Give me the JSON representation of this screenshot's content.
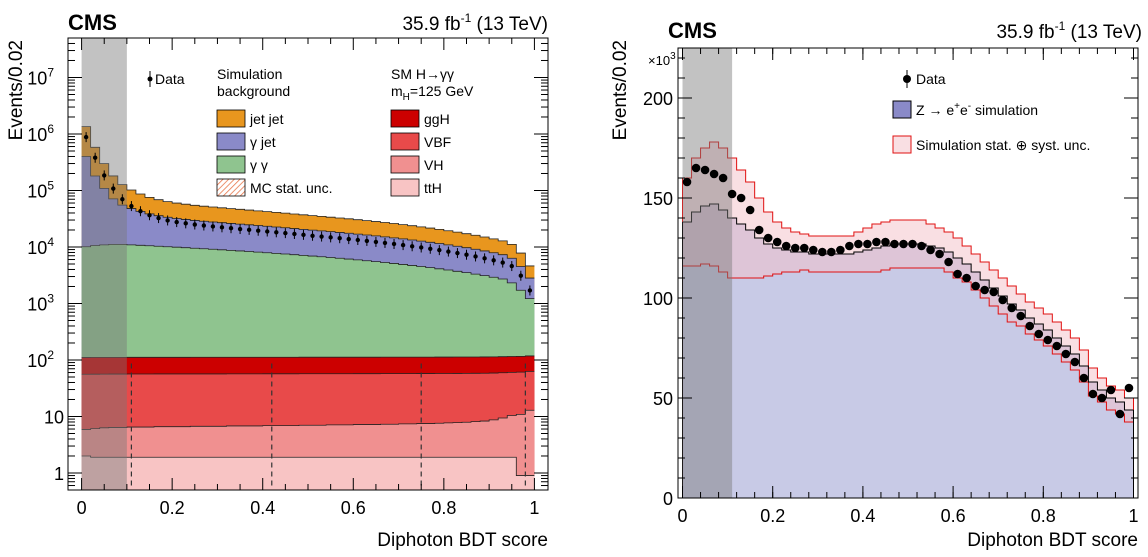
{
  "chart_data": [
    {
      "type": "area",
      "experiment": "CMS",
      "lumi": "35.9 fb",
      "lumi_sup": "-1",
      "energy": " (13 TeV)",
      "xlabel": "Diphoton BDT score",
      "ylabel": "Events/0.02",
      "log_y": true,
      "xlim": [
        -0.03,
        1.03
      ],
      "ylim": [
        0.5,
        50000000
      ],
      "x_ticks": [
        0,
        0.2,
        0.4,
        0.6,
        0.8,
        1
      ],
      "x_tick_labels": [
        "0",
        "0.2",
        "0.4",
        "0.6",
        "0.8",
        "1"
      ],
      "y_ticks": [
        1,
        10,
        100,
        1000,
        10000,
        100000,
        1000000,
        10000000
      ],
      "y_tick_labels": [
        {
          "base": "1",
          "exp": ""
        },
        {
          "base": "10",
          "exp": ""
        },
        {
          "base": "10",
          "exp": "2"
        },
        {
          "base": "10",
          "exp": "3"
        },
        {
          "base": "10",
          "exp": "4"
        },
        {
          "base": "10",
          "exp": "5"
        },
        {
          "base": "10",
          "exp": "6"
        },
        {
          "base": "10",
          "exp": "7"
        }
      ],
      "shaded_region": [
        0,
        0.1
      ],
      "dashed_lines_x": [
        0.11,
        0.42,
        0.75,
        0.98
      ],
      "legend": {
        "data": "Data",
        "bkg_header": [
          "Simulation",
          "background"
        ],
        "sig_header": "SM H→γγ",
        "sig_header2_main": "m",
        "sig_header2_sub": "H",
        "sig_header2_rest": "=125 GeV",
        "bkg_items": [
          {
            "label": "jet jet",
            "color": "#e8961e"
          },
          {
            "label": "γ jet",
            "color": "#8a8ac8"
          },
          {
            "label": "γ γ",
            "color": "#8fc48f"
          },
          {
            "label": "MC stat. unc.",
            "color": "#e8764a"
          }
        ],
        "sig_items": [
          {
            "label": "ggH",
            "color": "#cc0000"
          },
          {
            "label": "VBF",
            "color": "#e84a4a"
          },
          {
            "label": "VH",
            "color": "#f09090"
          },
          {
            "label": "ttH",
            "color": "#f8c4c4"
          }
        ]
      },
      "bin_width": 0.02,
      "series": [
        {
          "name": "ttH",
          "color": "#f8c4c4",
          "values": [
            2.0,
            1.9,
            1.9,
            1.9,
            1.9,
            1.9,
            1.9,
            1.9,
            1.9,
            1.9,
            1.9,
            1.9,
            1.9,
            1.9,
            1.9,
            1.9,
            1.9,
            1.9,
            1.9,
            1.9,
            1.9,
            1.9,
            1.9,
            1.9,
            1.9,
            1.9,
            1.9,
            1.9,
            1.9,
            1.9,
            1.9,
            1.9,
            1.9,
            1.9,
            1.9,
            1.9,
            1.9,
            1.9,
            1.9,
            1.9,
            1.9,
            1.9,
            1.9,
            1.9,
            1.9,
            1.9,
            1.9,
            1.9,
            0.9,
            0.9
          ]
        },
        {
          "name": "VH",
          "color": "#f09090",
          "values": [
            3.9,
            4.2,
            4.4,
            4.5,
            4.5,
            4.6,
            4.6,
            4.6,
            4.7,
            4.7,
            4.7,
            4.7,
            4.8,
            4.8,
            4.8,
            4.8,
            4.9,
            4.9,
            4.9,
            4.9,
            5.0,
            5.0,
            5.0,
            5.0,
            5.1,
            5.1,
            5.1,
            5.2,
            5.2,
            5.2,
            5.3,
            5.3,
            5.3,
            5.4,
            5.4,
            5.5,
            5.5,
            5.6,
            5.6,
            5.7,
            5.8,
            5.9,
            6.0,
            6.2,
            6.4,
            6.8,
            7.5,
            8.5,
            10,
            12
          ]
        },
        {
          "name": "VBF",
          "color": "#e84a4a",
          "values": [
            50,
            50,
            50,
            50,
            50,
            50,
            50,
            50,
            50,
            50,
            50,
            50,
            50,
            50,
            50,
            50,
            50,
            50,
            50,
            50,
            50,
            50,
            50,
            50,
            50,
            50,
            50,
            50,
            50,
            50,
            50,
            50,
            50,
            50,
            50,
            50,
            50,
            50,
            50,
            50,
            50,
            50,
            50,
            50,
            50,
            50,
            50,
            50,
            50,
            50
          ]
        },
        {
          "name": "ggH",
          "color": "#cc0000",
          "values": [
            55,
            55,
            55,
            55,
            55,
            55,
            55,
            55,
            55,
            55,
            55,
            55,
            55,
            55,
            55,
            55,
            55,
            55,
            55,
            55,
            55,
            55,
            55,
            55,
            55,
            55,
            55,
            55,
            55,
            55,
            55,
            55,
            55,
            55,
            55,
            55,
            55,
            55,
            55,
            55,
            55,
            55,
            55,
            55,
            55,
            55,
            55,
            55,
            55,
            55
          ]
        },
        {
          "name": "γ γ",
          "color": "#8fc48f",
          "values": [
            10000,
            10500,
            10800,
            11000,
            11000,
            10800,
            10600,
            10400,
            10200,
            10000,
            9800,
            9600,
            9400,
            9200,
            9000,
            8800,
            8600,
            8400,
            8200,
            8000,
            7800,
            7600,
            7400,
            7200,
            7000,
            6800,
            6600,
            6400,
            6200,
            6000,
            5800,
            5600,
            5400,
            5200,
            5000,
            4800,
            4600,
            4400,
            4200,
            4000,
            3800,
            3600,
            3400,
            3200,
            3000,
            2800,
            2600,
            2200,
            1600,
            1100
          ]
        },
        {
          "name": "γ jet",
          "color": "#8a8ac8",
          "values": [
            390000,
            170000,
            98000,
            60000,
            44000,
            37000,
            32000,
            28000,
            25500,
            23500,
            22000,
            21000,
            20000,
            19200,
            18600,
            18000,
            17400,
            16900,
            16400,
            15900,
            15400,
            14900,
            14400,
            13900,
            13400,
            13000,
            12600,
            12200,
            11800,
            11400,
            11000,
            10600,
            10200,
            9800,
            9400,
            9000,
            8600,
            8200,
            7800,
            7400,
            7000,
            6600,
            6200,
            5800,
            5400,
            5000,
            4600,
            4000,
            2800,
            1600
          ]
        },
        {
          "name": "jet jet",
          "color": "#e8961e",
          "values": [
            950000,
            400000,
            190000,
            110000,
            72000,
            54000,
            44000,
            37000,
            33000,
            30000,
            28000,
            26500,
            25200,
            24200,
            23300,
            22500,
            21700,
            21000,
            20300,
            19600,
            19000,
            18400,
            17800,
            17200,
            16600,
            16000,
            15500,
            15000,
            14500,
            14000,
            13500,
            13000,
            12500,
            12000,
            11500,
            11000,
            10500,
            10000,
            9500,
            9000,
            8500,
            8000,
            7500,
            7000,
            6500,
            6000,
            5500,
            4800,
            3300,
            1800
          ]
        }
      ],
      "data": {
        "name": "Data",
        "values": [
          880000,
          380000,
          185000,
          108000,
          70000,
          53000,
          43000,
          36500,
          32500,
          29500,
          27600,
          26200,
          25000,
          24000,
          23100,
          22300,
          21500,
          20800,
          20100,
          19400,
          18800,
          18200,
          17600,
          17000,
          16400,
          15800,
          15300,
          14800,
          14300,
          13800,
          13300,
          12800,
          12300,
          11800,
          11300,
          10800,
          10300,
          9800,
          9300,
          8800,
          8300,
          7800,
          7300,
          6800,
          6300,
          5800,
          5300,
          4600,
          3100,
          1700
        ]
      }
    },
    {
      "type": "area",
      "experiment": "CMS",
      "lumi": "35.9 fb",
      "lumi_sup": "-1",
      "energy": " (13 TeV)",
      "xlabel": "Diphoton BDT score",
      "ylabel": "Events/0.02",
      "y_multiplier": "×10",
      "y_multiplier_exp": "3",
      "log_y": false,
      "xlim": [
        -0.01,
        1.01
      ],
      "ylim": [
        0,
        225
      ],
      "x_ticks": [
        0,
        0.2,
        0.4,
        0.6,
        0.8,
        1
      ],
      "x_tick_labels": [
        "0",
        "0.2",
        "0.4",
        "0.6",
        "0.8",
        "1"
      ],
      "y_ticks": [
        0,
        50,
        100,
        150,
        200
      ],
      "y_tick_labels": [
        "0",
        "50",
        "100",
        "150",
        "200"
      ],
      "shaded_region": [
        0,
        0.11
      ],
      "legend": {
        "data": "Data",
        "sim_main": "Z → e",
        "sim_sup1": "+",
        "sim_mid": "e",
        "sim_sup2": "-",
        "sim_end": " simulation",
        "unc": "Simulation stat. ⊕ syst. unc.",
        "sim_color": "#8a8ac8",
        "unc_color": "#e01010"
      },
      "bin_width": 0.02,
      "series": [
        {
          "name": "Z → e+e- simulation",
          "color": "#c8cae6",
          "values": [
            138,
            143,
            146,
            147,
            144,
            140,
            137,
            134,
            130,
            127,
            125,
            124,
            123,
            123,
            122,
            122,
            122,
            122,
            122,
            123,
            124,
            125,
            126,
            127,
            127,
            127,
            127,
            126,
            125,
            123,
            120,
            117,
            113,
            109,
            105,
            101,
            97,
            94,
            90,
            87,
            84,
            80,
            76,
            72,
            66,
            58,
            54,
            50,
            48,
            44
          ]
        }
      ],
      "unc_up": [
        160,
        170,
        175,
        178,
        175,
        170,
        164,
        158,
        150,
        143,
        138,
        135,
        133,
        132,
        131,
        131,
        131,
        131,
        131,
        133,
        135,
        137,
        138,
        139,
        139,
        139,
        139,
        137,
        135,
        133,
        130,
        126,
        122,
        118,
        114,
        110,
        106,
        102,
        98,
        95,
        92,
        88,
        84,
        80,
        74,
        65,
        60,
        56,
        54,
        50
      ],
      "unc_down": [
        116,
        116,
        117,
        116,
        113,
        110,
        110,
        110,
        110,
        111,
        112,
        113,
        113,
        114,
        113,
        113,
        113,
        113,
        113,
        113,
        113,
        113,
        114,
        115,
        115,
        115,
        115,
        115,
        115,
        113,
        110,
        108,
        104,
        100,
        96,
        92,
        88,
        86,
        82,
        79,
        76,
        72,
        68,
        64,
        58,
        51,
        48,
        44,
        42,
        38
      ],
      "data": {
        "name": "Data",
        "values": [
          158,
          165,
          164,
          162,
          160,
          152,
          150,
          144,
          134,
          130,
          128,
          126,
          125,
          125,
          124,
          123,
          123,
          124,
          126,
          127,
          127,
          128,
          128,
          127,
          127,
          127,
          126,
          124,
          122,
          118,
          112,
          110,
          106,
          104,
          103,
          99,
          95,
          91,
          86,
          82,
          79,
          76,
          72,
          68,
          60,
          52,
          50,
          54,
          42,
          55
        ]
      }
    }
  ]
}
